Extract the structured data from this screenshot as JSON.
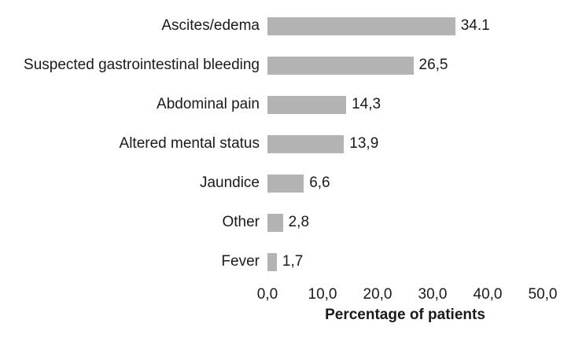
{
  "chart_data": {
    "type": "bar",
    "orientation": "horizontal",
    "categories": [
      "Ascites/edema",
      "Suspected gastrointestinal bleeding",
      "Abdominal pain",
      "Altered mental status",
      "Jaundice",
      "Other",
      "Fever"
    ],
    "values": [
      34.1,
      26.5,
      14.3,
      13.9,
      6.6,
      2.8,
      1.7
    ],
    "value_labels": [
      "34.1",
      "26,5",
      "14,3",
      "13,9",
      "6,6",
      "2,8",
      "1,7"
    ],
    "title": "",
    "xlabel": "Percentage of patients",
    "ylabel": "",
    "xlim": [
      0,
      50
    ],
    "x_tick_values": [
      0,
      10,
      20,
      30,
      40,
      50
    ],
    "x_tick_labels": [
      "0,0",
      "10,0",
      "20,0",
      "30,0",
      "40,0",
      "50,0"
    ],
    "grid": false,
    "legend": false,
    "bar_color": "#b3b3b3",
    "text_color": "#1a1a1a"
  }
}
